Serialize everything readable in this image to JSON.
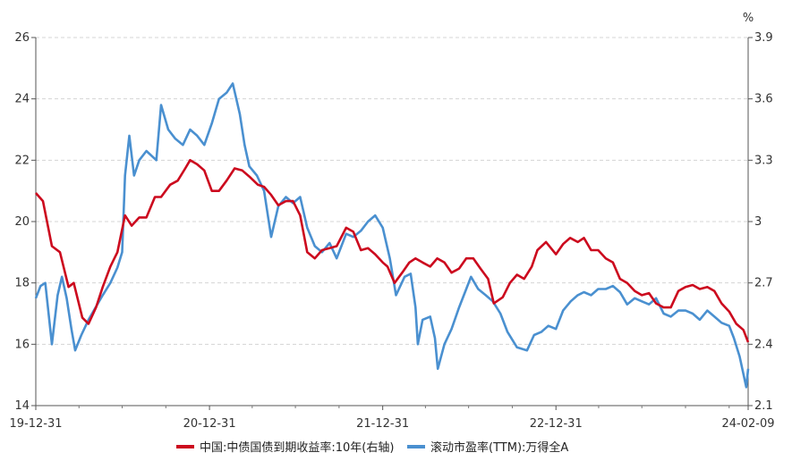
{
  "chart_data": {
    "type": "line",
    "unit_right": "%",
    "x_ticks": [
      "19-12-31",
      "20-12-31",
      "21-12-31",
      "22-12-31",
      "24-02-09"
    ],
    "x_range": [
      "2019-12-31",
      "2024-02-09"
    ],
    "left_axis": {
      "ylim": [
        14,
        26
      ],
      "ticks": [
        14,
        16,
        18,
        20,
        22,
        24,
        26
      ]
    },
    "right_axis": {
      "ylim": [
        2.1,
        3.9
      ],
      "ticks": [
        2.1,
        2.4,
        2.7,
        3,
        3.3,
        3.6,
        3.9
      ]
    },
    "grid": true,
    "legend_position": "bottom",
    "series": [
      {
        "name": "中国:中债国债到期收益率:10年(右轴)",
        "axis": "right",
        "color": "#cc0a1e",
        "points": [
          [
            "2019-12-31",
            3.14
          ],
          [
            "2020-01-15",
            3.1
          ],
          [
            "2020-02-03",
            2.88
          ],
          [
            "2020-02-20",
            2.85
          ],
          [
            "2020-03-09",
            2.68
          ],
          [
            "2020-03-20",
            2.7
          ],
          [
            "2020-04-07",
            2.53
          ],
          [
            "2020-04-20",
            2.5
          ],
          [
            "2020-05-06",
            2.58
          ],
          [
            "2020-05-20",
            2.68
          ],
          [
            "2020-06-05",
            2.78
          ],
          [
            "2020-06-20",
            2.85
          ],
          [
            "2020-07-06",
            3.03
          ],
          [
            "2020-07-20",
            2.98
          ],
          [
            "2020-08-05",
            3.02
          ],
          [
            "2020-08-20",
            3.02
          ],
          [
            "2020-09-07",
            3.12
          ],
          [
            "2020-09-20",
            3.12
          ],
          [
            "2020-10-09",
            3.18
          ],
          [
            "2020-10-25",
            3.2
          ],
          [
            "2020-11-10",
            3.26
          ],
          [
            "2020-11-20",
            3.3
          ],
          [
            "2020-12-05",
            3.28
          ],
          [
            "2020-12-20",
            3.25
          ],
          [
            "2021-01-05",
            3.15
          ],
          [
            "2021-01-20",
            3.15
          ],
          [
            "2021-02-05",
            3.2
          ],
          [
            "2021-02-22",
            3.26
          ],
          [
            "2021-03-10",
            3.25
          ],
          [
            "2021-03-25",
            3.22
          ],
          [
            "2021-04-12",
            3.18
          ],
          [
            "2021-04-25",
            3.17
          ],
          [
            "2021-05-10",
            3.13
          ],
          [
            "2021-05-25",
            3.08
          ],
          [
            "2021-06-10",
            3.1
          ],
          [
            "2021-06-25",
            3.1
          ],
          [
            "2021-07-10",
            3.03
          ],
          [
            "2021-07-25",
            2.85
          ],
          [
            "2021-08-10",
            2.82
          ],
          [
            "2021-08-25",
            2.86
          ],
          [
            "2021-09-10",
            2.87
          ],
          [
            "2021-09-25",
            2.88
          ],
          [
            "2021-10-15",
            2.97
          ],
          [
            "2021-10-30",
            2.95
          ],
          [
            "2021-11-15",
            2.86
          ],
          [
            "2021-11-30",
            2.87
          ],
          [
            "2021-12-15",
            2.84
          ],
          [
            "2021-12-31",
            2.8
          ],
          [
            "2022-01-10",
            2.78
          ],
          [
            "2022-01-25",
            2.7
          ],
          [
            "2022-02-10",
            2.75
          ],
          [
            "2022-02-25",
            2.8
          ],
          [
            "2022-03-10",
            2.82
          ],
          [
            "2022-03-25",
            2.8
          ],
          [
            "2022-04-10",
            2.78
          ],
          [
            "2022-04-25",
            2.82
          ],
          [
            "2022-05-10",
            2.8
          ],
          [
            "2022-05-25",
            2.75
          ],
          [
            "2022-06-10",
            2.77
          ],
          [
            "2022-06-25",
            2.82
          ],
          [
            "2022-07-10",
            2.82
          ],
          [
            "2022-07-25",
            2.77
          ],
          [
            "2022-08-10",
            2.72
          ],
          [
            "2022-08-22",
            2.6
          ],
          [
            "2022-09-10",
            2.63
          ],
          [
            "2022-09-25",
            2.7
          ],
          [
            "2022-10-10",
            2.74
          ],
          [
            "2022-10-25",
            2.72
          ],
          [
            "2022-11-10",
            2.78
          ],
          [
            "2022-11-22",
            2.86
          ],
          [
            "2022-12-10",
            2.9
          ],
          [
            "2022-12-31",
            2.84
          ],
          [
            "2023-01-15",
            2.89
          ],
          [
            "2023-01-30",
            2.92
          ],
          [
            "2023-02-15",
            2.9
          ],
          [
            "2023-02-28",
            2.92
          ],
          [
            "2023-03-15",
            2.86
          ],
          [
            "2023-03-30",
            2.86
          ],
          [
            "2023-04-15",
            2.82
          ],
          [
            "2023-04-30",
            2.8
          ],
          [
            "2023-05-15",
            2.72
          ],
          [
            "2023-05-30",
            2.7
          ],
          [
            "2023-06-15",
            2.66
          ],
          [
            "2023-06-30",
            2.64
          ],
          [
            "2023-07-15",
            2.65
          ],
          [
            "2023-07-30",
            2.6
          ],
          [
            "2023-08-15",
            2.58
          ],
          [
            "2023-08-30",
            2.58
          ],
          [
            "2023-09-15",
            2.66
          ],
          [
            "2023-09-30",
            2.68
          ],
          [
            "2023-10-15",
            2.69
          ],
          [
            "2023-10-30",
            2.67
          ],
          [
            "2023-11-15",
            2.68
          ],
          [
            "2023-11-30",
            2.66
          ],
          [
            "2023-12-15",
            2.6
          ],
          [
            "2023-12-31",
            2.56
          ],
          [
            "2024-01-15",
            2.5
          ],
          [
            "2024-01-30",
            2.47
          ],
          [
            "2024-02-09",
            2.41
          ]
        ]
      },
      {
        "name": "滚动市盈率(TTM):万得全A",
        "axis": "left",
        "color": "#4a90d0",
        "points": [
          [
            "2019-12-31",
            17.5
          ],
          [
            "2020-01-10",
            17.9
          ],
          [
            "2020-01-20",
            18.0
          ],
          [
            "2020-02-03",
            16.0
          ],
          [
            "2020-02-15",
            17.6
          ],
          [
            "2020-02-24",
            18.2
          ],
          [
            "2020-03-05",
            17.5
          ],
          [
            "2020-03-15",
            16.5
          ],
          [
            "2020-03-23",
            15.8
          ],
          [
            "2020-04-05",
            16.3
          ],
          [
            "2020-04-20",
            16.8
          ],
          [
            "2020-05-05",
            17.2
          ],
          [
            "2020-05-20",
            17.6
          ],
          [
            "2020-06-05",
            18.0
          ],
          [
            "2020-06-20",
            18.5
          ],
          [
            "2020-06-30",
            19.0
          ],
          [
            "2020-07-06",
            21.5
          ],
          [
            "2020-07-15",
            22.8
          ],
          [
            "2020-07-25",
            21.5
          ],
          [
            "2020-08-05",
            22.0
          ],
          [
            "2020-08-20",
            22.3
          ],
          [
            "2020-09-10",
            22.0
          ],
          [
            "2020-09-20",
            23.8
          ],
          [
            "2020-10-05",
            23.0
          ],
          [
            "2020-10-20",
            22.7
          ],
          [
            "2020-11-05",
            22.5
          ],
          [
            "2020-11-20",
            23.0
          ],
          [
            "2020-12-05",
            22.8
          ],
          [
            "2020-12-20",
            22.5
          ],
          [
            "2021-01-05",
            23.2
          ],
          [
            "2021-01-20",
            24.0
          ],
          [
            "2021-02-05",
            24.2
          ],
          [
            "2021-02-18",
            24.5
          ],
          [
            "2021-03-05",
            23.5
          ],
          [
            "2021-03-15",
            22.5
          ],
          [
            "2021-03-25",
            21.8
          ],
          [
            "2021-04-10",
            21.5
          ],
          [
            "2021-04-25",
            21.0
          ],
          [
            "2021-05-10",
            19.5
          ],
          [
            "2021-05-25",
            20.5
          ],
          [
            "2021-06-10",
            20.8
          ],
          [
            "2021-06-25",
            20.6
          ],
          [
            "2021-07-10",
            20.8
          ],
          [
            "2021-07-25",
            19.8
          ],
          [
            "2021-08-10",
            19.2
          ],
          [
            "2021-08-25",
            19.0
          ],
          [
            "2021-09-10",
            19.3
          ],
          [
            "2021-09-25",
            18.8
          ],
          [
            "2021-10-15",
            19.6
          ],
          [
            "2021-10-30",
            19.5
          ],
          [
            "2021-11-15",
            19.7
          ],
          [
            "2021-11-30",
            20.0
          ],
          [
            "2021-12-15",
            20.2
          ],
          [
            "2021-12-31",
            19.8
          ],
          [
            "2022-01-15",
            18.8
          ],
          [
            "2022-01-28",
            17.6
          ],
          [
            "2022-02-15",
            18.2
          ],
          [
            "2022-02-28",
            18.3
          ],
          [
            "2022-03-10",
            17.2
          ],
          [
            "2022-03-15",
            16.0
          ],
          [
            "2022-03-25",
            16.8
          ],
          [
            "2022-04-10",
            16.9
          ],
          [
            "2022-04-20",
            16.2
          ],
          [
            "2022-04-26",
            15.2
          ],
          [
            "2022-05-10",
            16.0
          ],
          [
            "2022-05-25",
            16.5
          ],
          [
            "2022-06-10",
            17.2
          ],
          [
            "2022-06-25",
            17.8
          ],
          [
            "2022-07-05",
            18.2
          ],
          [
            "2022-07-20",
            17.8
          ],
          [
            "2022-08-05",
            17.6
          ],
          [
            "2022-08-20",
            17.4
          ],
          [
            "2022-09-05",
            17.0
          ],
          [
            "2022-09-20",
            16.4
          ],
          [
            "2022-10-10",
            15.9
          ],
          [
            "2022-10-31",
            15.8
          ],
          [
            "2022-11-15",
            16.3
          ],
          [
            "2022-11-30",
            16.4
          ],
          [
            "2022-12-15",
            16.6
          ],
          [
            "2022-12-31",
            16.5
          ],
          [
            "2023-01-15",
            17.1
          ],
          [
            "2023-01-31",
            17.4
          ],
          [
            "2023-02-15",
            17.6
          ],
          [
            "2023-02-28",
            17.7
          ],
          [
            "2023-03-15",
            17.6
          ],
          [
            "2023-03-30",
            17.8
          ],
          [
            "2023-04-15",
            17.8
          ],
          [
            "2023-04-30",
            17.9
          ],
          [
            "2023-05-15",
            17.7
          ],
          [
            "2023-05-30",
            17.3
          ],
          [
            "2023-06-15",
            17.5
          ],
          [
            "2023-06-30",
            17.4
          ],
          [
            "2023-07-15",
            17.3
          ],
          [
            "2023-07-30",
            17.5
          ],
          [
            "2023-08-15",
            17.0
          ],
          [
            "2023-08-30",
            16.9
          ],
          [
            "2023-09-15",
            17.1
          ],
          [
            "2023-09-30",
            17.1
          ],
          [
            "2023-10-15",
            17.0
          ],
          [
            "2023-10-30",
            16.8
          ],
          [
            "2023-11-15",
            17.1
          ],
          [
            "2023-11-30",
            16.9
          ],
          [
            "2023-12-15",
            16.7
          ],
          [
            "2023-12-31",
            16.6
          ],
          [
            "2024-01-10",
            16.2
          ],
          [
            "2024-01-22",
            15.6
          ],
          [
            "2024-02-05",
            14.6
          ],
          [
            "2024-02-09",
            15.2
          ]
        ]
      }
    ]
  }
}
